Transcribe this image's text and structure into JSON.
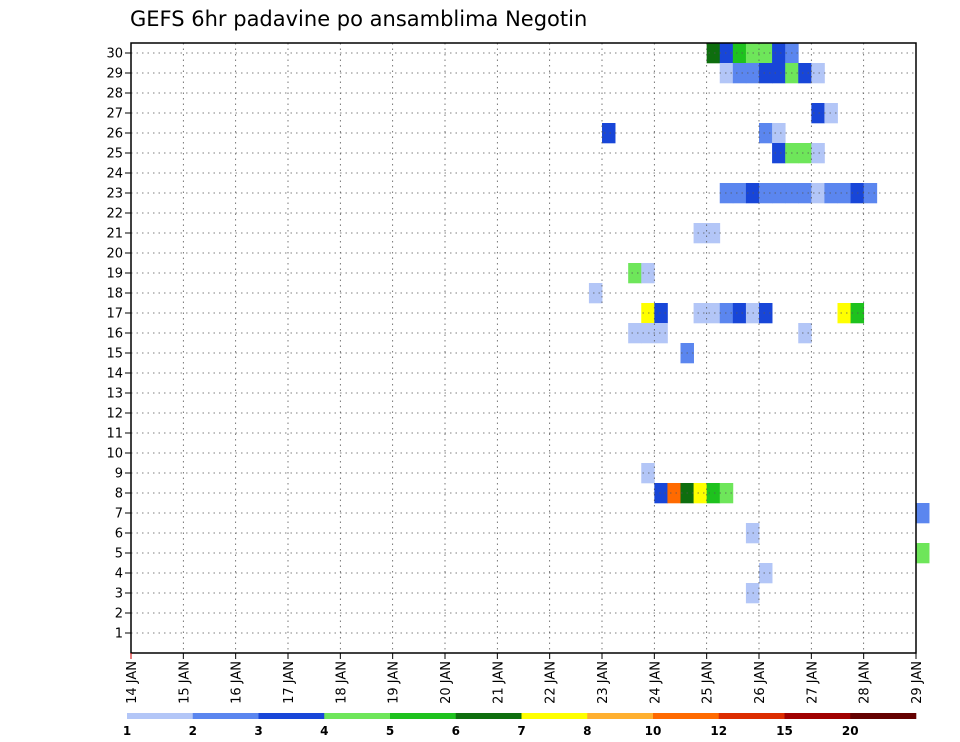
{
  "chart_data": {
    "type": "heatmap",
    "title": "GEFS 6hr padavine po ansamblima Negotin",
    "xlabel": "",
    "ylabel": "",
    "x_ticks": [
      "14 JAN",
      "15 JAN",
      "16 JAN",
      "17 JAN",
      "18 JAN",
      "19 JAN",
      "20 JAN",
      "21 JAN",
      "22 JAN",
      "23 JAN",
      "24 JAN",
      "25 JAN",
      "26 JAN",
      "27 JAN",
      "28 JAN",
      "29 JAN"
    ],
    "x_range_days": [
      0,
      15
    ],
    "y_ticks": [
      1,
      2,
      3,
      4,
      5,
      6,
      7,
      8,
      9,
      10,
      11,
      12,
      13,
      14,
      15,
      16,
      17,
      18,
      19,
      20,
      21,
      22,
      23,
      24,
      25,
      26,
      27,
      28,
      29,
      30
    ],
    "y_range": [
      0,
      30.5
    ],
    "grid": true,
    "colorbar": {
      "labels": [
        "1",
        "2",
        "3",
        "4",
        "5",
        "6",
        "7",
        "8",
        "10",
        "12",
        "15",
        "20"
      ],
      "colors": [
        "#b3c6f7",
        "#5b86ef",
        "#1846d8",
        "#6ee65a",
        "#1ec21e",
        "#0e6e0e",
        "#ffff00",
        "#ffb030",
        "#ff6a00",
        "#dc2c00",
        "#a00000",
        "#640000"
      ]
    },
    "cells": [
      {
        "member": 30,
        "start": "25 JAN 00Z",
        "color": "#0e6e0e"
      },
      {
        "member": 30,
        "start": "25 JAN 06Z",
        "color": "#1846d8"
      },
      {
        "member": 30,
        "start": "25 JAN 12Z",
        "color": "#1ec21e"
      },
      {
        "member": 30,
        "start": "25 JAN 18Z",
        "color": "#6ee65a"
      },
      {
        "member": 30,
        "start": "26 JAN 00Z",
        "color": "#6ee65a"
      },
      {
        "member": 30,
        "start": "26 JAN 06Z",
        "color": "#1846d8"
      },
      {
        "member": 30,
        "start": "26 JAN 12Z",
        "color": "#5b86ef"
      },
      {
        "member": 29,
        "start": "25 JAN 06Z",
        "color": "#b3c6f7"
      },
      {
        "member": 29,
        "start": "25 JAN 12Z",
        "color": "#5b86ef"
      },
      {
        "member": 29,
        "start": "25 JAN 18Z",
        "color": "#5b86ef"
      },
      {
        "member": 29,
        "start": "26 JAN 00Z",
        "color": "#1846d8"
      },
      {
        "member": 29,
        "start": "26 JAN 06Z",
        "color": "#1846d8"
      },
      {
        "member": 29,
        "start": "26 JAN 12Z",
        "color": "#6ee65a"
      },
      {
        "member": 29,
        "start": "26 JAN 18Z",
        "color": "#1846d8"
      },
      {
        "member": 29,
        "start": "27 JAN 00Z",
        "color": "#b3c6f7"
      },
      {
        "member": 27,
        "start": "27 JAN 00Z",
        "color": "#1846d8"
      },
      {
        "member": 27,
        "start": "27 JAN 06Z",
        "color": "#b3c6f7"
      },
      {
        "member": 26,
        "start": "23 JAN 00Z",
        "color": "#1846d8"
      },
      {
        "member": 26,
        "start": "26 JAN 00Z",
        "color": "#5b86ef"
      },
      {
        "member": 26,
        "start": "26 JAN 06Z",
        "color": "#b3c6f7"
      },
      {
        "member": 25,
        "start": "26 JAN 06Z",
        "color": "#1846d8"
      },
      {
        "member": 25,
        "start": "26 JAN 12Z",
        "color": "#6ee65a"
      },
      {
        "member": 25,
        "start": "26 JAN 18Z",
        "color": "#6ee65a"
      },
      {
        "member": 25,
        "start": "27 JAN 00Z",
        "color": "#b3c6f7"
      },
      {
        "member": 23,
        "start": "25 JAN 06Z",
        "color": "#5b86ef"
      },
      {
        "member": 23,
        "start": "25 JAN 12Z",
        "color": "#5b86ef"
      },
      {
        "member": 23,
        "start": "25 JAN 18Z",
        "color": "#1846d8"
      },
      {
        "member": 23,
        "start": "26 JAN 00Z",
        "color": "#5b86ef"
      },
      {
        "member": 23,
        "start": "26 JAN 06Z",
        "color": "#5b86ef"
      },
      {
        "member": 23,
        "start": "26 JAN 12Z",
        "color": "#5b86ef"
      },
      {
        "member": 23,
        "start": "26 JAN 18Z",
        "color": "#5b86ef"
      },
      {
        "member": 23,
        "start": "27 JAN 00Z",
        "color": "#b3c6f7"
      },
      {
        "member": 23,
        "start": "27 JAN 06Z",
        "color": "#5b86ef"
      },
      {
        "member": 23,
        "start": "27 JAN 12Z",
        "color": "#5b86ef"
      },
      {
        "member": 23,
        "start": "27 JAN 18Z",
        "color": "#1846d8"
      },
      {
        "member": 23,
        "start": "28 JAN 00Z",
        "color": "#5b86ef"
      },
      {
        "member": 21,
        "start": "24 JAN 18Z",
        "color": "#b3c6f7"
      },
      {
        "member": 21,
        "start": "25 JAN 00Z",
        "color": "#b3c6f7"
      },
      {
        "member": 19,
        "start": "23 JAN 12Z",
        "color": "#6ee65a"
      },
      {
        "member": 19,
        "start": "23 JAN 18Z",
        "color": "#b3c6f7"
      },
      {
        "member": 18,
        "start": "22 JAN 18Z",
        "color": "#b3c6f7"
      },
      {
        "member": 17,
        "start": "23 JAN 18Z",
        "color": "#ffff00"
      },
      {
        "member": 17,
        "start": "24 JAN 00Z",
        "color": "#1846d8"
      },
      {
        "member": 17,
        "start": "24 JAN 18Z",
        "color": "#b3c6f7"
      },
      {
        "member": 17,
        "start": "25 JAN 00Z",
        "color": "#b3c6f7"
      },
      {
        "member": 17,
        "start": "25 JAN 06Z",
        "color": "#5b86ef"
      },
      {
        "member": 17,
        "start": "25 JAN 12Z",
        "color": "#1846d8"
      },
      {
        "member": 17,
        "start": "25 JAN 18Z",
        "color": "#b3c6f7"
      },
      {
        "member": 17,
        "start": "26 JAN 00Z",
        "color": "#1846d8"
      },
      {
        "member": 17,
        "start": "27 JAN 12Z",
        "color": "#ffff00"
      },
      {
        "member": 17,
        "start": "27 JAN 18Z",
        "color": "#1ec21e"
      },
      {
        "member": 16,
        "start": "23 JAN 12Z",
        "color": "#b3c6f7"
      },
      {
        "member": 16,
        "start": "23 JAN 18Z",
        "color": "#b3c6f7"
      },
      {
        "member": 16,
        "start": "24 JAN 00Z",
        "color": "#b3c6f7"
      },
      {
        "member": 16,
        "start": "26 JAN 18Z",
        "color": "#b3c6f7"
      },
      {
        "member": 15,
        "start": "24 JAN 12Z",
        "color": "#5b86ef"
      },
      {
        "member": 9,
        "start": "23 JAN 18Z",
        "color": "#b3c6f7"
      },
      {
        "member": 8,
        "start": "24 JAN 00Z",
        "color": "#1846d8"
      },
      {
        "member": 8,
        "start": "24 JAN 06Z",
        "color": "#ff6a00"
      },
      {
        "member": 8,
        "start": "24 JAN 12Z",
        "color": "#0e6e0e"
      },
      {
        "member": 8,
        "start": "24 JAN 18Z",
        "color": "#ffff00"
      },
      {
        "member": 8,
        "start": "25 JAN 00Z",
        "color": "#1ec21e"
      },
      {
        "member": 8,
        "start": "25 JAN 06Z",
        "color": "#6ee65a"
      },
      {
        "member": 7,
        "start": "29 JAN 00Z",
        "color": "#5b86ef"
      },
      {
        "member": 6,
        "start": "25 JAN 18Z",
        "color": "#b3c6f7"
      },
      {
        "member": 5,
        "start": "29 JAN 00Z",
        "color": "#6ee65a"
      },
      {
        "member": 4,
        "start": "26 JAN 00Z",
        "color": "#b3c6f7"
      },
      {
        "member": 3,
        "start": "25 JAN 18Z",
        "color": "#b3c6f7"
      }
    ]
  }
}
